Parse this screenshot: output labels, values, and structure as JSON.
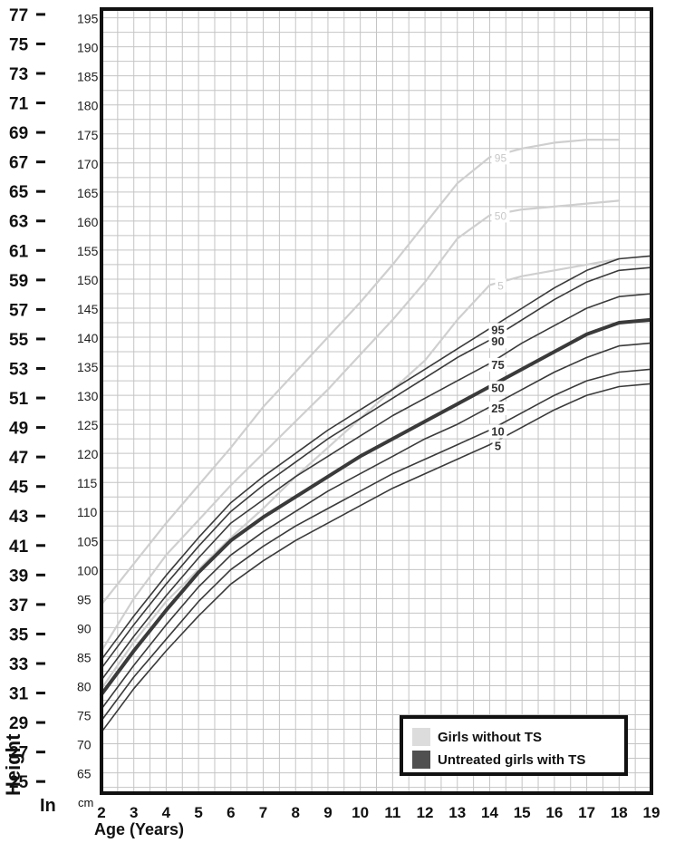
{
  "chart_data": {
    "type": "line",
    "xlabel": "Age (Years)",
    "ylabel": "Height",
    "unit_in": "In",
    "unit_cm": "cm",
    "x_ticks": [
      2,
      3,
      4,
      5,
      6,
      7,
      8,
      9,
      10,
      11,
      12,
      13,
      14,
      15,
      16,
      17,
      18,
      19
    ],
    "xlim": [
      2,
      19
    ],
    "ylim_cm": [
      61.5,
      196.5
    ],
    "cm_ticks": [
      65,
      70,
      75,
      80,
      85,
      90,
      95,
      100,
      105,
      110,
      115,
      120,
      125,
      130,
      135,
      140,
      145,
      150,
      155,
      160,
      165,
      170,
      175,
      180,
      185,
      190,
      195
    ],
    "in_ticks": [
      25,
      27,
      29,
      31,
      33,
      35,
      37,
      39,
      41,
      43,
      45,
      47,
      49,
      51,
      53,
      55,
      57,
      59,
      61,
      63,
      65,
      67,
      69,
      71,
      73,
      75,
      77
    ],
    "grid": true,
    "legend_placement": "bottom-right",
    "legend": [
      {
        "label": "Girls without TS",
        "color": "#dcdcdc"
      },
      {
        "label": "Untreated girls with TS",
        "color": "#505050"
      }
    ],
    "series": [
      {
        "name": "95",
        "group": "Girls without TS",
        "color": "#cfcfcf",
        "x": [
          2,
          3,
          4,
          5,
          6,
          7,
          8,
          9,
          10,
          11,
          12,
          13,
          14,
          15,
          16,
          17,
          18
        ],
        "y": [
          94,
          101,
          108,
          114.5,
          121,
          128,
          134,
          140,
          146,
          152.5,
          159.5,
          166.5,
          171,
          172.5,
          173.5,
          174,
          174
        ]
      },
      {
        "name": "50",
        "group": "Girls without TS",
        "color": "#cfcfcf",
        "x": [
          2,
          3,
          4,
          5,
          6,
          7,
          8,
          9,
          10,
          11,
          12,
          13,
          14,
          15,
          16,
          17,
          18
        ],
        "y": [
          86,
          95,
          102.5,
          108.5,
          114.5,
          120,
          125.5,
          131,
          137,
          143,
          149.5,
          157,
          161,
          162,
          162.5,
          163,
          163.5
        ]
      },
      {
        "name": "5",
        "group": "Girls without TS",
        "color": "#cfcfcf",
        "x": [
          2,
          3,
          4,
          5,
          6,
          7,
          8,
          9,
          10,
          11,
          12,
          13,
          14,
          15,
          16,
          17,
          18
        ],
        "y": [
          79.5,
          87.5,
          94.5,
          100,
          105.5,
          110.5,
          116,
          121,
          126,
          131,
          136,
          143,
          149,
          150.5,
          151.5,
          152.5,
          153.5
        ]
      },
      {
        "name": "95",
        "group": "Untreated girls with TS",
        "color": "#3a3a3a",
        "x": [
          2,
          3,
          4,
          5,
          6,
          7,
          8,
          9,
          10,
          11,
          12,
          13,
          14,
          15,
          16,
          17,
          18,
          19
        ],
        "y": [
          84.5,
          92,
          99,
          105.5,
          111.5,
          116,
          120,
          124,
          127.5,
          131,
          134.5,
          138,
          141.5,
          145,
          148.5,
          151.5,
          153.5,
          154
        ]
      },
      {
        "name": "90",
        "group": "Untreated girls with TS",
        "color": "#3a3a3a",
        "x": [
          2,
          3,
          4,
          5,
          6,
          7,
          8,
          9,
          10,
          11,
          12,
          13,
          14,
          15,
          16,
          17,
          18,
          19
        ],
        "y": [
          83,
          90.5,
          97.5,
          104,
          110,
          114.5,
          118.5,
          122.5,
          126,
          129.5,
          133,
          136.5,
          139.5,
          143,
          146.5,
          149.5,
          151.5,
          152
        ]
      },
      {
        "name": "75",
        "group": "Untreated girls with TS",
        "color": "#3a3a3a",
        "x": [
          2,
          3,
          4,
          5,
          6,
          7,
          8,
          9,
          10,
          11,
          12,
          13,
          14,
          15,
          16,
          17,
          18,
          19
        ],
        "y": [
          81,
          88.5,
          95.5,
          102,
          108,
          112,
          116,
          119.5,
          123,
          126.5,
          129.5,
          132.5,
          135.5,
          139,
          142,
          145,
          147,
          147.5
        ]
      },
      {
        "name": "50",
        "group": "Untreated girls with TS",
        "color": "#3a3a3a",
        "bold": true,
        "x": [
          2,
          3,
          4,
          5,
          6,
          7,
          8,
          9,
          10,
          11,
          12,
          13,
          14,
          15,
          16,
          17,
          18,
          19
        ],
        "y": [
          78.5,
          86,
          93,
          99.5,
          105,
          109,
          112.5,
          116,
          119.5,
          122.5,
          125.5,
          128.5,
          131.5,
          134.5,
          137.5,
          140.5,
          142.5,
          143
        ]
      },
      {
        "name": "25",
        "group": "Untreated girls with TS",
        "color": "#3a3a3a",
        "x": [
          2,
          3,
          4,
          5,
          6,
          7,
          8,
          9,
          10,
          11,
          12,
          13,
          14,
          15,
          16,
          17,
          18,
          19
        ],
        "y": [
          76,
          83.5,
          90.5,
          97,
          102.5,
          106.5,
          110,
          113.5,
          116.5,
          119.5,
          122.5,
          125,
          128,
          131,
          134,
          136.5,
          138.5,
          139
        ]
      },
      {
        "name": "10",
        "group": "Untreated girls with TS",
        "color": "#3a3a3a",
        "x": [
          2,
          3,
          4,
          5,
          6,
          7,
          8,
          9,
          10,
          11,
          12,
          13,
          14,
          15,
          16,
          17,
          18,
          19
        ],
        "y": [
          74,
          81.5,
          88,
          94.5,
          100,
          104,
          107.5,
          110.5,
          113.5,
          116.5,
          119,
          121.5,
          124,
          127,
          130,
          132.5,
          134,
          134.5
        ]
      },
      {
        "name": "5",
        "group": "Untreated girls with TS",
        "color": "#3a3a3a",
        "x": [
          2,
          3,
          4,
          5,
          6,
          7,
          8,
          9,
          10,
          11,
          12,
          13,
          14,
          15,
          16,
          17,
          18,
          19
        ],
        "y": [
          72,
          79.5,
          86,
          92,
          97.5,
          101.5,
          105,
          108,
          111,
          114,
          116.5,
          119,
          121.5,
          124.5,
          127.5,
          130,
          131.5,
          132
        ]
      }
    ]
  }
}
